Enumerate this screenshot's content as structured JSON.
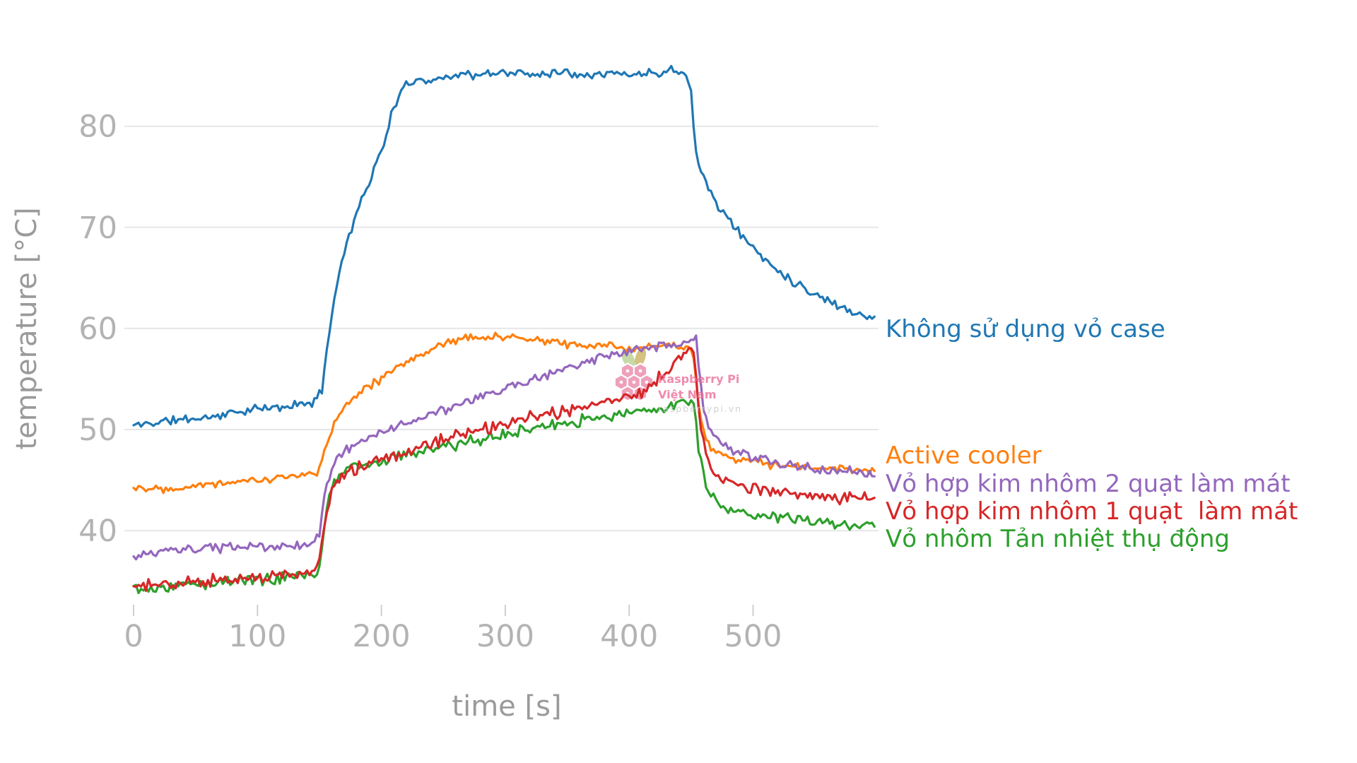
{
  "style": {
    "background": "#ffffff",
    "grid_color": "#e7e7e7",
    "tick_mark_color": "#cfcfcf",
    "tick_label_color": "#b3b3b3",
    "axis_title_color": "#9a9a9a"
  },
  "watermark": {
    "line1": "Raspberry Pi",
    "line2": "Việt Nam",
    "line3": "raspberrypi.vn",
    "text_color": "#ec6f97",
    "url_color": "#c6c6c6",
    "berry_color": "#e8799f",
    "leaf_left_color": "#aec983",
    "leaf_right_color": "#c3a94c"
  },
  "chart_data": {
    "type": "line",
    "title": "",
    "xlabel": "time [s]",
    "ylabel": "temperature [°C]",
    "x_ticks": [
      0,
      100,
      200,
      300,
      400,
      500
    ],
    "y_ticks": [
      40,
      50,
      60,
      70,
      80
    ],
    "xlim": [
      0,
      600
    ],
    "ylim_visible": [
      33,
      88
    ],
    "grid": "horizontal-only",
    "legend_position": "colored text right of line ends",
    "stress_window_s": [
      150,
      450
    ],
    "series": [
      {
        "name": "Không sử dụng vỏ case",
        "color": "#1f77b4",
        "noise": 0.55,
        "seed": 11,
        "keyframes": [
          [
            0,
            50.4
          ],
          [
            30,
            50.9
          ],
          [
            60,
            51.2
          ],
          [
            90,
            51.9
          ],
          [
            120,
            52.2
          ],
          [
            148,
            52.8
          ],
          [
            152,
            54
          ],
          [
            158,
            60
          ],
          [
            165,
            65
          ],
          [
            172,
            68.5
          ],
          [
            180,
            71.5
          ],
          [
            190,
            74.5
          ],
          [
            200,
            77.5
          ],
          [
            208,
            81
          ],
          [
            216,
            83.5
          ],
          [
            226,
            84.6
          ],
          [
            245,
            84.6
          ],
          [
            260,
            85.2
          ],
          [
            280,
            85.0
          ],
          [
            300,
            85.4
          ],
          [
            320,
            85.1
          ],
          [
            340,
            85.4
          ],
          [
            360,
            85.2
          ],
          [
            380,
            85.3
          ],
          [
            400,
            85.1
          ],
          [
            420,
            85.3
          ],
          [
            435,
            85.6
          ],
          [
            446,
            85.3
          ],
          [
            450,
            84
          ],
          [
            453,
            78
          ],
          [
            456,
            76
          ],
          [
            462,
            74.5
          ],
          [
            470,
            72.5
          ],
          [
            480,
            70.8
          ],
          [
            490,
            69.3
          ],
          [
            500,
            68
          ],
          [
            510,
            66.8
          ],
          [
            520,
            65.8
          ],
          [
            530,
            64.9
          ],
          [
            540,
            64.1
          ],
          [
            550,
            63.4
          ],
          [
            560,
            62.8
          ],
          [
            570,
            62.2
          ],
          [
            580,
            61.7
          ],
          [
            590,
            61.3
          ],
          [
            598,
            61.1
          ]
        ]
      },
      {
        "name": "Active cooler",
        "color": "#ff7f0e",
        "noise": 0.5,
        "seed": 22,
        "keyframes": [
          [
            0,
            44.3
          ],
          [
            25,
            44.2
          ],
          [
            50,
            44.5
          ],
          [
            75,
            44.8
          ],
          [
            100,
            45.0
          ],
          [
            125,
            45.3
          ],
          [
            148,
            45.6
          ],
          [
            152,
            47
          ],
          [
            158,
            49.5
          ],
          [
            165,
            51.5
          ],
          [
            175,
            53
          ],
          [
            185,
            54
          ],
          [
            200,
            55
          ],
          [
            215,
            56.2
          ],
          [
            230,
            57.3
          ],
          [
            245,
            58.3
          ],
          [
            260,
            58.9
          ],
          [
            280,
            59.2
          ],
          [
            300,
            59.1
          ],
          [
            320,
            58.9
          ],
          [
            340,
            58.6
          ],
          [
            360,
            58.4
          ],
          [
            380,
            58.2
          ],
          [
            400,
            58.1
          ],
          [
            420,
            58.2
          ],
          [
            440,
            58.3
          ],
          [
            449,
            58.4
          ],
          [
            452,
            57
          ],
          [
            456,
            52.5
          ],
          [
            460,
            49.8
          ],
          [
            465,
            48.4
          ],
          [
            472,
            47.6
          ],
          [
            480,
            47.2
          ],
          [
            495,
            46.9
          ],
          [
            510,
            46.6
          ],
          [
            530,
            46.4
          ],
          [
            550,
            46.2
          ],
          [
            570,
            46.1
          ],
          [
            598,
            45.9
          ]
        ]
      },
      {
        "name": "Vỏ hợp kim nhôm 2 quạt làm mát",
        "color": "#9467bd",
        "noise": 0.55,
        "seed": 33,
        "keyframes": [
          [
            0,
            37.3
          ],
          [
            20,
            37.9
          ],
          [
            45,
            38.1
          ],
          [
            70,
            38.3
          ],
          [
            95,
            38.4
          ],
          [
            120,
            38.4
          ],
          [
            145,
            38.7
          ],
          [
            150,
            39.8
          ],
          [
            154,
            43.5
          ],
          [
            160,
            46.2
          ],
          [
            167,
            47.6
          ],
          [
            175,
            48.3
          ],
          [
            190,
            49.2
          ],
          [
            210,
            50.2
          ],
          [
            230,
            51.1
          ],
          [
            250,
            51.9
          ],
          [
            270,
            52.7
          ],
          [
            290,
            53.6
          ],
          [
            310,
            54.5
          ],
          [
            330,
            55.3
          ],
          [
            350,
            56.1
          ],
          [
            370,
            56.8
          ],
          [
            390,
            57.4
          ],
          [
            410,
            57.9
          ],
          [
            425,
            58.2
          ],
          [
            440,
            58.5
          ],
          [
            450,
            58.7
          ],
          [
            454,
            58.8
          ],
          [
            457,
            55
          ],
          [
            461,
            51.5
          ],
          [
            466,
            49.8
          ],
          [
            472,
            48.9
          ],
          [
            480,
            48.2
          ],
          [
            490,
            47.6
          ],
          [
            500,
            47.2
          ],
          [
            515,
            46.8
          ],
          [
            530,
            46.4
          ],
          [
            550,
            46.1
          ],
          [
            570,
            45.9
          ],
          [
            598,
            45.7
          ]
        ]
      },
      {
        "name": "Vỏ hợp kim nhôm 1 quạt  làm mát",
        "color": "#d62728",
        "noise": 0.75,
        "seed": 44,
        "keyframes": [
          [
            0,
            34.5
          ],
          [
            25,
            34.7
          ],
          [
            50,
            34.9
          ],
          [
            75,
            35.1
          ],
          [
            100,
            35.4
          ],
          [
            125,
            35.6
          ],
          [
            147,
            35.9
          ],
          [
            151,
            37.5
          ],
          [
            155,
            41.5
          ],
          [
            161,
            44.3
          ],
          [
            168,
            45.6
          ],
          [
            178,
            46.1
          ],
          [
            195,
            46.8
          ],
          [
            215,
            47.6
          ],
          [
            235,
            48.4
          ],
          [
            255,
            49.1
          ],
          [
            275,
            49.8
          ],
          [
            295,
            50.4
          ],
          [
            315,
            51.0
          ],
          [
            335,
            51.5
          ],
          [
            355,
            52.0
          ],
          [
            375,
            52.5
          ],
          [
            395,
            53.1
          ],
          [
            410,
            53.8
          ],
          [
            422,
            54.8
          ],
          [
            432,
            55.8
          ],
          [
            440,
            56.8
          ],
          [
            446,
            57.8
          ],
          [
            450,
            58.4
          ],
          [
            453,
            57.5
          ],
          [
            456,
            52
          ],
          [
            461,
            48
          ],
          [
            466,
            46.2
          ],
          [
            472,
            45.4
          ],
          [
            480,
            44.9
          ],
          [
            495,
            44.4
          ],
          [
            510,
            44.0
          ],
          [
            530,
            43.7
          ],
          [
            550,
            43.5
          ],
          [
            570,
            43.3
          ],
          [
            598,
            43.1
          ]
        ]
      },
      {
        "name": "Vỏ nhôm Tản nhiệt thụ động",
        "color": "#2ca02c",
        "noise": 0.7,
        "seed": 55,
        "keyframes": [
          [
            0,
            34.3
          ],
          [
            25,
            34.5
          ],
          [
            50,
            34.7
          ],
          [
            75,
            35.0
          ],
          [
            100,
            35.2
          ],
          [
            125,
            35.4
          ],
          [
            147,
            35.7
          ],
          [
            151,
            37
          ],
          [
            155,
            41.5
          ],
          [
            161,
            44.6
          ],
          [
            168,
            45.8
          ],
          [
            178,
            46.3
          ],
          [
            195,
            46.9
          ],
          [
            215,
            47.4
          ],
          [
            235,
            47.9
          ],
          [
            255,
            48.4
          ],
          [
            275,
            48.9
          ],
          [
            295,
            49.4
          ],
          [
            315,
            49.9
          ],
          [
            335,
            50.4
          ],
          [
            355,
            50.8
          ],
          [
            375,
            51.2
          ],
          [
            395,
            51.5
          ],
          [
            410,
            51.8
          ],
          [
            425,
            52.1
          ],
          [
            440,
            52.5
          ],
          [
            450,
            52.8
          ],
          [
            453,
            52
          ],
          [
            456,
            48
          ],
          [
            461,
            45
          ],
          [
            466,
            43.6
          ],
          [
            472,
            42.8
          ],
          [
            480,
            42.2
          ],
          [
            495,
            41.7
          ],
          [
            510,
            41.4
          ],
          [
            530,
            41.1
          ],
          [
            550,
            40.9
          ],
          [
            570,
            40.7
          ],
          [
            598,
            40.5
          ]
        ]
      }
    ]
  }
}
